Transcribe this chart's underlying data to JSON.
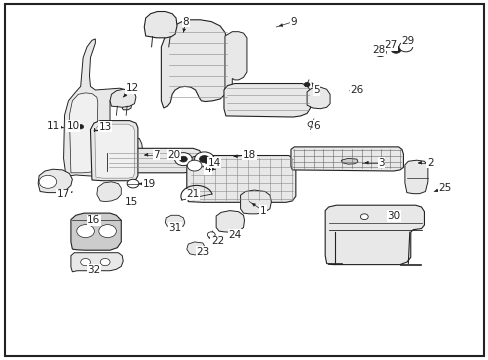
{
  "bg": "#ffffff",
  "border_color": "#000000",
  "lw_main": 1.0,
  "lw_thin": 0.5,
  "gray_fill": "#e8e8e8",
  "dark_fill": "#cccccc",
  "line_color": "#222222",
  "label_fontsize": 7.5,
  "labels": {
    "1": [
      0.538,
      0.415,
      0.51,
      0.44
    ],
    "2": [
      0.88,
      0.548,
      0.855,
      0.548
    ],
    "3": [
      0.78,
      0.548,
      0.74,
      0.548
    ],
    "4": [
      0.425,
      0.53,
      0.44,
      0.53
    ],
    "5": [
      0.647,
      0.75,
      0.638,
      0.77
    ],
    "6": [
      0.647,
      0.65,
      0.638,
      0.66
    ],
    "7": [
      0.32,
      0.57,
      0.295,
      0.57
    ],
    "8": [
      0.38,
      0.94,
      0.375,
      0.91
    ],
    "9": [
      0.6,
      0.94,
      0.565,
      0.925
    ],
    "10": [
      0.15,
      0.65,
      0.165,
      0.65
    ],
    "11": [
      0.11,
      0.65,
      0.13,
      0.645
    ],
    "12": [
      0.27,
      0.755,
      0.252,
      0.73
    ],
    "13": [
      0.215,
      0.648,
      0.202,
      0.64
    ],
    "14": [
      0.438,
      0.548,
      0.42,
      0.548
    ],
    "15": [
      0.268,
      0.44,
      0.258,
      0.455
    ],
    "16": [
      0.192,
      0.388,
      0.2,
      0.385
    ],
    "17": [
      0.13,
      0.46,
      0.148,
      0.467
    ],
    "18": [
      0.51,
      0.57,
      0.478,
      0.565
    ],
    "19": [
      0.305,
      0.488,
      0.284,
      0.49
    ],
    "20": [
      0.355,
      0.57,
      0.37,
      0.558
    ],
    "21": [
      0.395,
      0.46,
      0.405,
      0.452
    ],
    "22": [
      0.445,
      0.33,
      0.438,
      0.345
    ],
    "23": [
      0.415,
      0.3,
      0.415,
      0.315
    ],
    "24": [
      0.48,
      0.348,
      0.472,
      0.36
    ],
    "25": [
      0.91,
      0.478,
      0.888,
      0.468
    ],
    "26": [
      0.73,
      0.75,
      0.715,
      0.748
    ],
    "27": [
      0.8,
      0.875,
      0.79,
      0.862
    ],
    "28": [
      0.775,
      0.86,
      0.768,
      0.852
    ],
    "29": [
      0.835,
      0.885,
      0.828,
      0.872
    ],
    "30": [
      0.805,
      0.4,
      0.812,
      0.405
    ],
    "31": [
      0.358,
      0.368,
      0.362,
      0.38
    ],
    "32": [
      0.192,
      0.25,
      0.2,
      0.265
    ]
  }
}
